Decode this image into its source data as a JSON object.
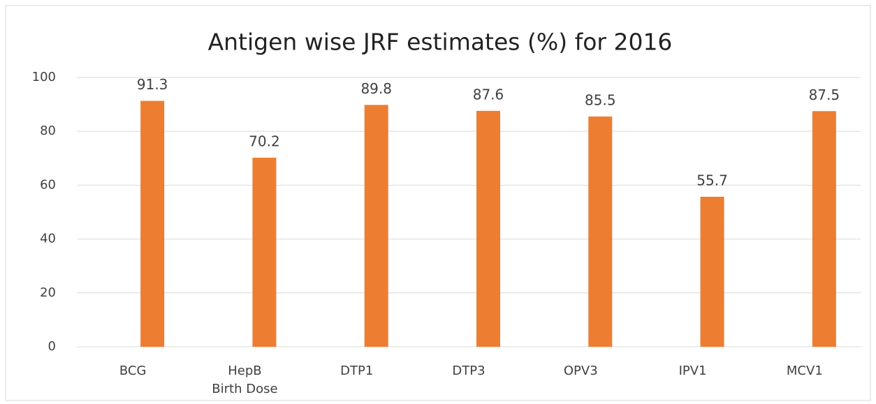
{
  "chart_data": {
    "type": "bar",
    "title": "Antigen wise JRF estimates (%) for 2016",
    "categories": [
      "BCG",
      "HepB Birth Dose",
      "DTP1",
      "DTP3",
      "OPV3",
      "IPV1",
      "MCV1"
    ],
    "values": [
      91.3,
      70.2,
      89.8,
      87.6,
      85.5,
      55.7,
      87.5
    ],
    "color": "#ed7d31",
    "ylim": [
      0,
      100
    ],
    "yticks": [
      0,
      20,
      40,
      60,
      80,
      100
    ],
    "grid": true
  }
}
